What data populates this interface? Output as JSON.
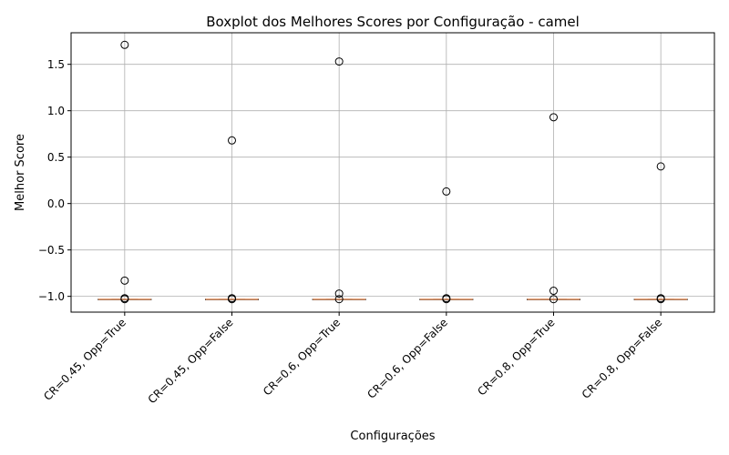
{
  "chart_data": {
    "type": "boxplot",
    "title": "Boxplot dos Melhores Scores por Configuração - camel",
    "xlabel": "Configurações",
    "ylabel": "Melhor Score",
    "ylim": [
      -1.17,
      1.84
    ],
    "yticks": [
      -1.0,
      -0.5,
      0.0,
      0.5,
      1.0,
      1.5
    ],
    "ytick_labels": [
      "−1.0",
      "−0.5",
      "0.0",
      "0.5",
      "1.0",
      "1.5"
    ],
    "grid": true,
    "categories": [
      "CR=0.45, Opp=True",
      "CR=0.45, Opp=False",
      "CR=0.6, Opp=True",
      "CR=0.6, Opp=False",
      "CR=0.8, Opp=True",
      "CR=0.8, Opp=False"
    ],
    "boxes": [
      {
        "median": -1.0316,
        "q1": -1.0316,
        "q3": -1.0316,
        "whisker_low": -1.0316,
        "whisker_high": -1.0316,
        "outliers": [
          1.71,
          -0.83,
          -1.02,
          -1.03
        ]
      },
      {
        "median": -1.0316,
        "q1": -1.0316,
        "q3": -1.0316,
        "whisker_low": -1.0316,
        "whisker_high": -1.0316,
        "outliers": [
          0.68,
          -1.02,
          -1.03
        ]
      },
      {
        "median": -1.0316,
        "q1": -1.0316,
        "q3": -1.0316,
        "whisker_low": -1.0316,
        "whisker_high": -1.0316,
        "outliers": [
          1.53,
          -0.97,
          -1.03
        ]
      },
      {
        "median": -1.0316,
        "q1": -1.0316,
        "q3": -1.0316,
        "whisker_low": -1.0316,
        "whisker_high": -1.0316,
        "outliers": [
          0.13,
          -1.02,
          -1.03
        ]
      },
      {
        "median": -1.0316,
        "q1": -1.0316,
        "q3": -1.0316,
        "whisker_low": -1.0316,
        "whisker_high": -1.0316,
        "outliers": [
          0.93,
          -0.94,
          -1.03
        ]
      },
      {
        "median": -1.0316,
        "q1": -1.0316,
        "q3": -1.0316,
        "whisker_low": -1.0316,
        "whisker_high": -1.0316,
        "outliers": [
          0.4,
          -1.02,
          -1.03
        ]
      }
    ],
    "colors": {
      "median": "#f0a070",
      "box": "#000000",
      "grid": "#b0b0b0",
      "outlier": "#000000"
    }
  }
}
